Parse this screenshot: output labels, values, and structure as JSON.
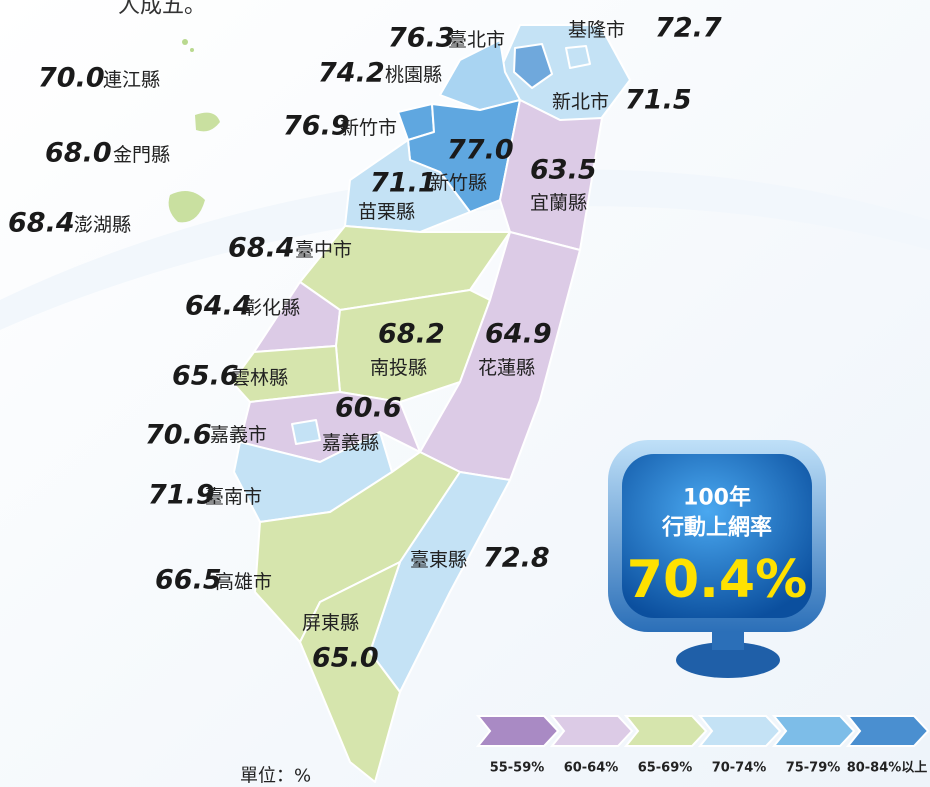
{
  "fragment": "人成五。",
  "regions": [
    {
      "name": "臺北市",
      "value": "76.3"
    },
    {
      "name": "基隆市",
      "value": "72.7"
    },
    {
      "name": "連江縣",
      "value": "70.0"
    },
    {
      "name": "桃園縣",
      "value": "74.2"
    },
    {
      "name": "新北市",
      "value": "71.5"
    },
    {
      "name": "新竹市",
      "value": "76.9"
    },
    {
      "name": "金門縣",
      "value": "68.0"
    },
    {
      "name": "新竹縣",
      "value": "77.0"
    },
    {
      "name": "苗栗縣",
      "value": "71.1"
    },
    {
      "name": "宜蘭縣",
      "value": "63.5"
    },
    {
      "name": "澎湖縣",
      "value": "68.4"
    },
    {
      "name": "臺中市",
      "value": "68.4"
    },
    {
      "name": "彰化縣",
      "value": "64.4"
    },
    {
      "name": "南投縣",
      "value": "68.2"
    },
    {
      "name": "花蓮縣",
      "value": "64.9"
    },
    {
      "name": "雲林縣",
      "value": "65.6"
    },
    {
      "name": "嘉義縣",
      "value": "60.6"
    },
    {
      "name": "嘉義市",
      "value": "70.6"
    },
    {
      "name": "臺南市",
      "value": "71.9"
    },
    {
      "name": "臺東縣",
      "value": "72.8"
    },
    {
      "name": "高雄市",
      "value": "66.5"
    },
    {
      "name": "屏東縣",
      "value": "65.0"
    }
  ],
  "badge": {
    "year": "100年",
    "title": "行動上網率",
    "value": "70.4%"
  },
  "legend": [
    "55-59%",
    "60-64%",
    "65-69%",
    "70-74%",
    "75-79%",
    "80-84%以上"
  ],
  "unit": "單位：%"
}
